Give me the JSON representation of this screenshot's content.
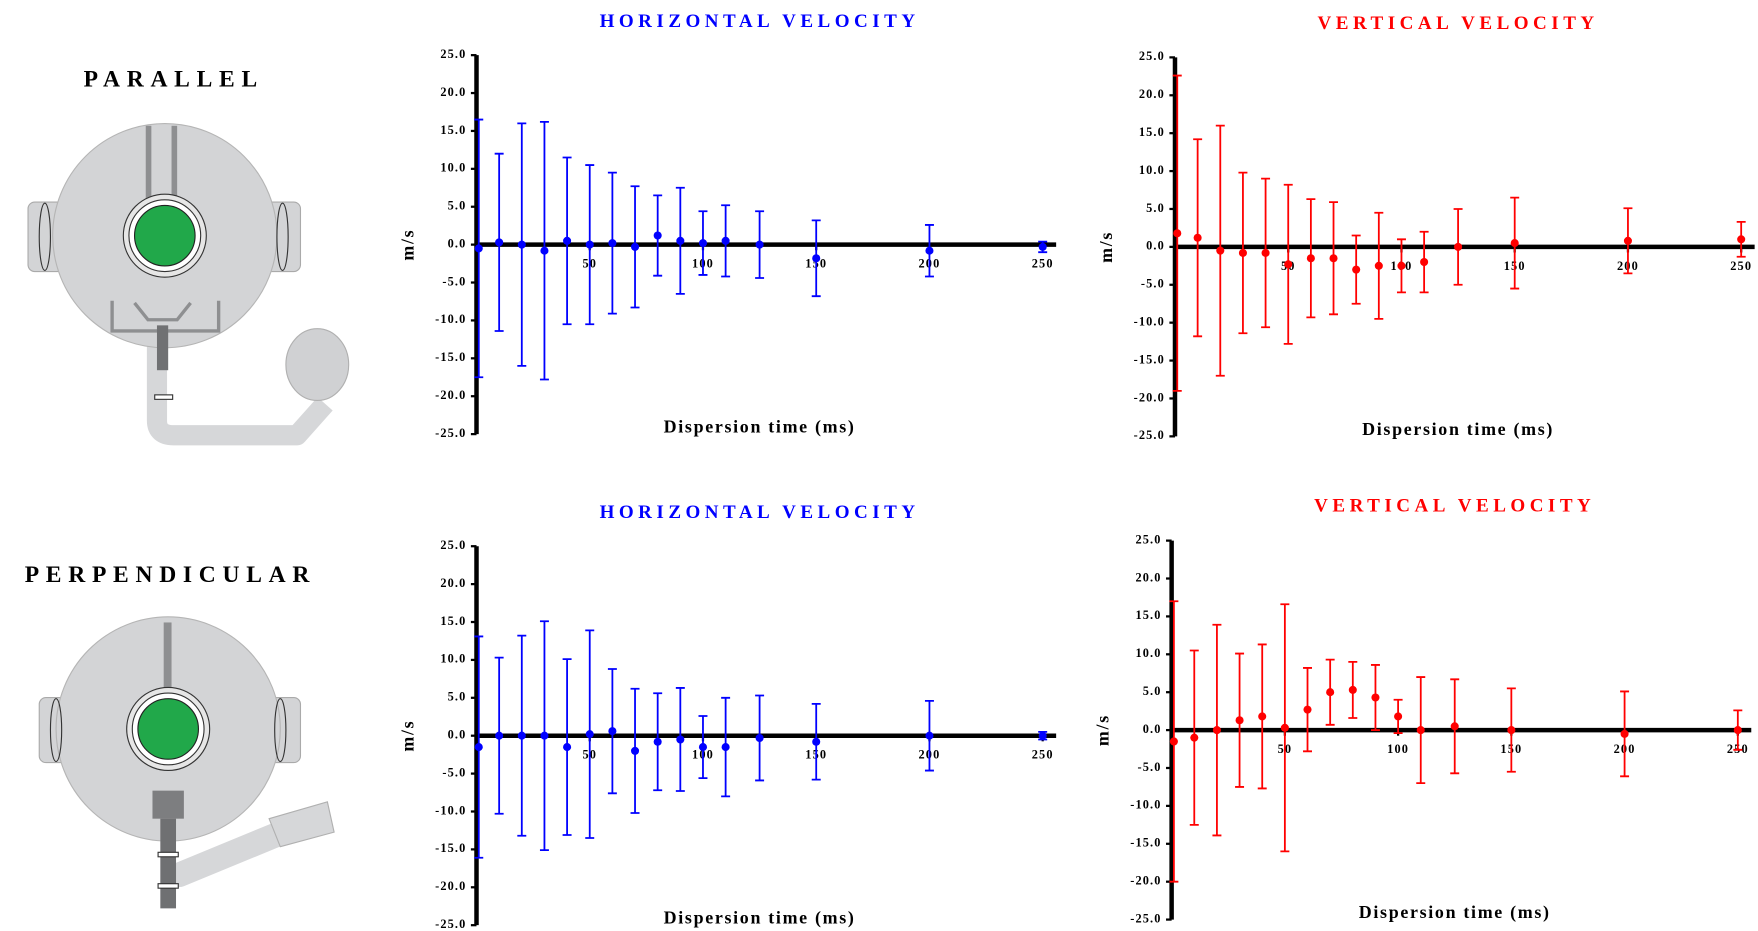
{
  "panels": [
    {
      "label": "PARALLEL"
    },
    {
      "label": "PERPENDICULAR"
    }
  ],
  "chart_data": [
    {
      "type": "scatter",
      "title": "HORIZONTAL VELOCITY",
      "xlabel": "Dispersion time (ms)",
      "ylabel": "m/s",
      "x": [
        1,
        10,
        20,
        30,
        40,
        50,
        60,
        70,
        80,
        90,
        100,
        110,
        125,
        150,
        200,
        250
      ],
      "series": [
        {
          "color": "#0000ff",
          "values": [
            -0.5,
            0.3,
            0,
            -0.8,
            0.5,
            0,
            0.2,
            -0.3,
            1.2,
            0.5,
            0.2,
            0.5,
            0,
            -1.8,
            -0.8,
            -0.3
          ],
          "errors": [
            17,
            11.7,
            16,
            17,
            11,
            10.5,
            9.3,
            8,
            5.3,
            7,
            4.2,
            4.7,
            4.4,
            5,
            3.4,
            0.7
          ]
        }
      ],
      "xlim": [
        0,
        250
      ],
      "xticks": [
        50,
        100,
        150,
        200,
        250
      ],
      "ylim": [
        -25,
        25
      ],
      "yticks": [
        {
          "value": 25,
          "label": "25.0"
        },
        {
          "value": 20,
          "label": "20.0"
        },
        {
          "value": 15,
          "label": "15.0"
        },
        {
          "value": 10,
          "label": "10.0"
        },
        {
          "value": 5,
          "label": "5.0"
        },
        {
          "value": 0,
          "label": "0.0"
        },
        {
          "value": -5,
          "label": "-5.0"
        },
        {
          "value": -10,
          "label": "-10.0"
        },
        {
          "value": -15,
          "label": "-15.0"
        },
        {
          "value": -20,
          "label": "-20.0"
        },
        {
          "value": -25,
          "label": "-25.0"
        }
      ]
    },
    {
      "type": "scatter",
      "title": "VERTICAL VELOCITY",
      "xlabel": "Dispersion time (ms)",
      "ylabel": "m/s",
      "x": [
        1,
        10,
        20,
        30,
        40,
        50,
        60,
        70,
        80,
        90,
        100,
        110,
        125,
        150,
        200,
        250
      ],
      "series": [
        {
          "color": "#ff0000",
          "values": [
            1.8,
            1.2,
            -0.5,
            -0.8,
            -0.8,
            -2.3,
            -1.5,
            -1.5,
            -3,
            -2.5,
            -2.5,
            -2,
            0,
            0.5,
            0.8,
            1
          ],
          "errors": [
            20.8,
            13,
            16.5,
            10.6,
            9.8,
            10.5,
            7.8,
            7.4,
            4.5,
            7,
            3.5,
            4,
            5,
            6,
            4.3,
            2.3
          ]
        }
      ],
      "xlim": [
        0,
        250
      ],
      "xticks": [
        50,
        100,
        150,
        200,
        250
      ],
      "ylim": [
        -25,
        25
      ],
      "yticks": [
        {
          "value": 25,
          "label": "25.0"
        },
        {
          "value": 20,
          "label": "20.0"
        },
        {
          "value": 15,
          "label": "15.0"
        },
        {
          "value": 10,
          "label": "10.0"
        },
        {
          "value": 5,
          "label": "5.0"
        },
        {
          "value": 0,
          "label": "0.0"
        },
        {
          "value": -5,
          "label": "-5.0"
        },
        {
          "value": -10,
          "label": "-10.0"
        },
        {
          "value": -15,
          "label": "-15.0"
        },
        {
          "value": -20,
          "label": "-20.0"
        },
        {
          "value": -25,
          "label": "-25.0"
        }
      ]
    },
    {
      "type": "scatter",
      "title": "HORIZONTAL VELOCITY",
      "xlabel": "Dispersion time (ms)",
      "ylabel": "m/s",
      "x": [
        1,
        10,
        20,
        30,
        40,
        50,
        60,
        70,
        80,
        90,
        100,
        110,
        125,
        150,
        200,
        250
      ],
      "series": [
        {
          "color": "#0000ff",
          "values": [
            -1.5,
            0,
            0,
            0,
            -1.5,
            0.2,
            0.6,
            -2,
            -0.8,
            -0.5,
            -1.5,
            -1.5,
            -0.3,
            -0.8,
            0,
            0
          ],
          "errors": [
            14.6,
            10.3,
            13.2,
            15.1,
            11.6,
            13.7,
            8.2,
            8.2,
            6.4,
            6.8,
            4.1,
            6.5,
            5.6,
            5,
            4.6,
            0.5
          ]
        }
      ],
      "xlim": [
        0,
        250
      ],
      "xticks": [
        50,
        100,
        150,
        200,
        250
      ],
      "ylim": [
        -25,
        25
      ],
      "yticks": [
        {
          "value": 25,
          "label": "25.0"
        },
        {
          "value": 20,
          "label": "20.0"
        },
        {
          "value": 15,
          "label": "15.0"
        },
        {
          "value": 10,
          "label": "10.0"
        },
        {
          "value": 5,
          "label": "5.0"
        },
        {
          "value": 0,
          "label": "0.0"
        },
        {
          "value": -5,
          "label": "-5.0"
        },
        {
          "value": -10,
          "label": "-10.0"
        },
        {
          "value": -15,
          "label": "-15.0"
        },
        {
          "value": -20,
          "label": "-20.0"
        },
        {
          "value": -25,
          "label": "-25.0"
        }
      ]
    },
    {
      "type": "scatter",
      "title": "VERTICAL VELOCITY",
      "xlabel": "Dispersion time (ms)",
      "ylabel": "m/s",
      "x": [
        1,
        10,
        20,
        30,
        40,
        50,
        60,
        70,
        80,
        90,
        100,
        110,
        125,
        150,
        200,
        250
      ],
      "series": [
        {
          "color": "#ff0000",
          "values": [
            -1.5,
            -1,
            0,
            1.3,
            1.8,
            0.3,
            2.7,
            5,
            5.3,
            4.3,
            1.8,
            0,
            0.5,
            0,
            -0.5,
            0
          ],
          "errors": [
            18.5,
            11.5,
            13.9,
            8.8,
            9.5,
            16.3,
            5.5,
            4.3,
            3.7,
            4.3,
            2.2,
            7,
            6.2,
            5.5,
            5.6,
            2.6
          ]
        }
      ],
      "xlim": [
        0,
        250
      ],
      "xticks": [
        50,
        100,
        150,
        200,
        250
      ],
      "ylim": [
        -25,
        25
      ],
      "yticks": [
        {
          "value": 25,
          "label": "25.0"
        },
        {
          "value": 20,
          "label": "20.0"
        },
        {
          "value": 15,
          "label": "15.0"
        },
        {
          "value": 10,
          "label": "10.0"
        },
        {
          "value": 5,
          "label": "5.0"
        },
        {
          "value": 0,
          "label": "0.0"
        },
        {
          "value": -5,
          "label": "-5.0"
        },
        {
          "value": -10,
          "label": "-10.0"
        },
        {
          "value": -15,
          "label": "-15.0"
        },
        {
          "value": -20,
          "label": "-20.0"
        },
        {
          "value": -25,
          "label": "-25.0"
        }
      ]
    }
  ]
}
